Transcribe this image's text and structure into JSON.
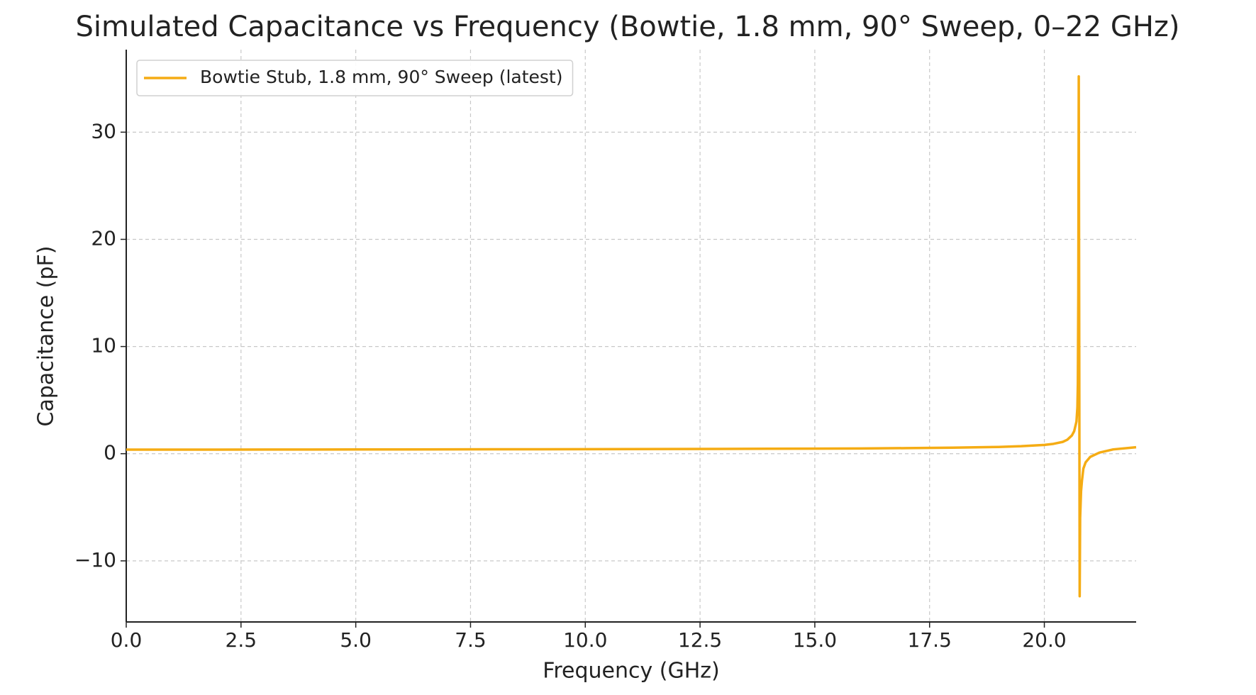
{
  "chart_data": {
    "type": "line",
    "title": "Simulated Capacitance vs Frequency (Bowtie, 1.8 mm, 90° Sweep, 0–22 GHz)",
    "x_label": "Frequency (GHz)",
    "y_label": "Capacitance (pF)",
    "x": [
      0,
      2,
      4,
      6,
      8,
      10,
      12,
      14,
      16,
      17,
      18,
      19,
      19.5,
      20,
      20.2,
      20.4,
      20.5,
      20.6,
      20.65,
      20.7,
      20.72,
      20.73,
      20.74,
      20.75,
      20.77,
      20.78,
      20.8,
      20.82,
      20.85,
      20.9,
      21,
      21.2,
      21.5,
      22
    ],
    "series": [
      {
        "name": "Bowtie Stub, 1.8 mm, 90° Sweep (latest)",
        "color": "#f5ac14",
        "values": [
          0.38,
          0.38,
          0.39,
          0.4,
          0.41,
          0.42,
          0.44,
          0.46,
          0.49,
          0.52,
          0.56,
          0.63,
          0.7,
          0.82,
          0.92,
          1.1,
          1.3,
          1.7,
          2.1,
          3.0,
          4.3,
          6.5,
          15,
          35.2,
          -13.3,
          -6,
          -3.5,
          -2.5,
          -1.4,
          -0.8,
          -0.3,
          0.1,
          0.4,
          0.6
        ]
      }
    ],
    "xlim": [
      0,
      22
    ],
    "ylim": [
      -15.7,
      37.7
    ],
    "xticks": [
      {
        "value": 0,
        "label": "0.0"
      },
      2.5,
      {
        "value": 5,
        "label": "5.0"
      },
      7.5,
      {
        "value": 10,
        "label": "10.0"
      },
      12.5,
      {
        "value": 15,
        "label": "15.0"
      },
      17.5,
      {
        "value": 20,
        "label": "20.0"
      }
    ],
    "yticks": [
      {
        "value": -10,
        "label": "−10"
      },
      0,
      10,
      20,
      30
    ],
    "grid": true,
    "legend": "upper left"
  }
}
